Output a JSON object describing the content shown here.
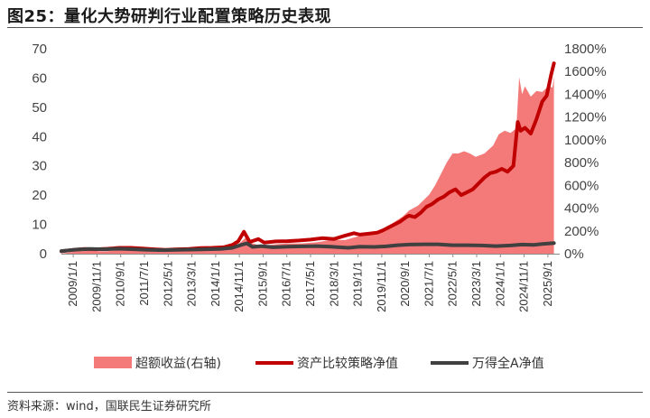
{
  "title": "图25：量化大势研判行业配置策略历史表现",
  "source": "资料来源：wind，国联民生证券研究所",
  "chart_data": {
    "type": "line",
    "left_axis": {
      "ticks": [
        0,
        10,
        20,
        30,
        40,
        50,
        60,
        70
      ],
      "ylim": [
        0,
        70
      ]
    },
    "right_axis": {
      "ticks": [
        "0%",
        "200%",
        "400%",
        "600%",
        "800%",
        "1000%",
        "1200%",
        "1400%",
        "1600%",
        "1800%"
      ],
      "ylim": [
        0,
        1800
      ]
    },
    "x_ticks": [
      "2009/1/1",
      "2009/11/1",
      "2010/9/1",
      "2011/7/1",
      "2012/5/1",
      "2013/3/1",
      "2014/1/1",
      "2014/11/1",
      "2015/9/1",
      "2016/7/1",
      "2017/5/1",
      "2018/3/1",
      "2019/1/1",
      "2019/11/1",
      "2020/9/1",
      "2021/7/1",
      "2022/5/1",
      "2023/3/1",
      "2024/1/1",
      "2024/11/1",
      "2025/9/1"
    ],
    "x_range": [
      2009.0,
      2026.2
    ],
    "series": [
      {
        "name": "超额收益(右轴)",
        "type": "area",
        "axis": "right",
        "color": "#f47a7a",
        "points": [
          [
            2009.0,
            0
          ],
          [
            2009.5,
            20
          ],
          [
            2010.0,
            25
          ],
          [
            2010.5,
            20
          ],
          [
            2011.0,
            30
          ],
          [
            2011.5,
            30
          ],
          [
            2012.0,
            20
          ],
          [
            2012.5,
            15
          ],
          [
            2013.0,
            25
          ],
          [
            2013.5,
            30
          ],
          [
            2014.0,
            30
          ],
          [
            2014.5,
            35
          ],
          [
            2014.9,
            40
          ],
          [
            2015.1,
            80
          ],
          [
            2015.4,
            150
          ],
          [
            2015.6,
            90
          ],
          [
            2015.9,
            70
          ],
          [
            2016.3,
            80
          ],
          [
            2016.8,
            90
          ],
          [
            2017.3,
            90
          ],
          [
            2017.8,
            100
          ],
          [
            2018.3,
            120
          ],
          [
            2018.8,
            120
          ],
          [
            2019.2,
            150
          ],
          [
            2019.6,
            160
          ],
          [
            2019.9,
            180
          ],
          [
            2020.2,
            230
          ],
          [
            2020.5,
            280
          ],
          [
            2020.8,
            330
          ],
          [
            2021.0,
            380
          ],
          [
            2021.3,
            420
          ],
          [
            2021.5,
            470
          ],
          [
            2021.7,
            520
          ],
          [
            2021.9,
            600
          ],
          [
            2022.1,
            700
          ],
          [
            2022.3,
            800
          ],
          [
            2022.5,
            880
          ],
          [
            2022.7,
            880
          ],
          [
            2022.9,
            900
          ],
          [
            2023.1,
            880
          ],
          [
            2023.3,
            850
          ],
          [
            2023.6,
            880
          ],
          [
            2023.9,
            950
          ],
          [
            2024.1,
            1050
          ],
          [
            2024.3,
            1080
          ],
          [
            2024.5,
            1060
          ],
          [
            2024.7,
            1100
          ],
          [
            2024.8,
            1550
          ],
          [
            2024.9,
            1400
          ],
          [
            2025.0,
            1470
          ],
          [
            2025.2,
            1380
          ],
          [
            2025.4,
            1430
          ],
          [
            2025.6,
            1420
          ],
          [
            2025.8,
            1470
          ],
          [
            2025.95,
            1460
          ],
          [
            2026.0,
            1560
          ]
        ]
      },
      {
        "name": "资产比较策略净值",
        "type": "line",
        "axis": "left",
        "color": "#c00000",
        "points": [
          [
            2009.0,
            0.8
          ],
          [
            2009.4,
            1.3
          ],
          [
            2009.8,
            1.6
          ],
          [
            2010.2,
            1.5
          ],
          [
            2010.6,
            1.7
          ],
          [
            2011.0,
            2.0
          ],
          [
            2011.4,
            2.0
          ],
          [
            2011.8,
            1.8
          ],
          [
            2012.2,
            1.5
          ],
          [
            2012.6,
            1.3
          ],
          [
            2013.0,
            1.5
          ],
          [
            2013.4,
            1.6
          ],
          [
            2013.8,
            1.9
          ],
          [
            2014.2,
            2.0
          ],
          [
            2014.6,
            2.2
          ],
          [
            2014.9,
            3.0
          ],
          [
            2015.1,
            4.2
          ],
          [
            2015.3,
            7.5
          ],
          [
            2015.5,
            4.0
          ],
          [
            2015.8,
            5.0
          ],
          [
            2016.0,
            3.8
          ],
          [
            2016.4,
            4.2
          ],
          [
            2016.8,
            4.3
          ],
          [
            2017.2,
            4.5
          ],
          [
            2017.6,
            4.8
          ],
          [
            2018.0,
            5.3
          ],
          [
            2018.4,
            5.0
          ],
          [
            2018.8,
            6.2
          ],
          [
            2019.1,
            7.0
          ],
          [
            2019.3,
            6.5
          ],
          [
            2019.6,
            6.8
          ],
          [
            2019.9,
            7.2
          ],
          [
            2020.1,
            8.0
          ],
          [
            2020.3,
            9.0
          ],
          [
            2020.5,
            10.0
          ],
          [
            2020.7,
            11.0
          ],
          [
            2020.9,
            12.5
          ],
          [
            2021.0,
            13.0
          ],
          [
            2021.2,
            12.5
          ],
          [
            2021.4,
            14.0
          ],
          [
            2021.6,
            16.0
          ],
          [
            2021.8,
            17.0
          ],
          [
            2022.0,
            18.5
          ],
          [
            2022.2,
            19.5
          ],
          [
            2022.4,
            21.0
          ],
          [
            2022.6,
            22.0
          ],
          [
            2022.8,
            20.0
          ],
          [
            2023.0,
            21.0
          ],
          [
            2023.2,
            22.0
          ],
          [
            2023.4,
            24.0
          ],
          [
            2023.6,
            26.0
          ],
          [
            2023.8,
            27.5
          ],
          [
            2024.0,
            28.0
          ],
          [
            2024.2,
            29.0
          ],
          [
            2024.4,
            28.0
          ],
          [
            2024.6,
            30.0
          ],
          [
            2024.75,
            45.0
          ],
          [
            2024.85,
            42.0
          ],
          [
            2025.0,
            43.0
          ],
          [
            2025.2,
            41.0
          ],
          [
            2025.4,
            46.0
          ],
          [
            2025.6,
            52.0
          ],
          [
            2025.75,
            54.0
          ],
          [
            2025.9,
            61.0
          ],
          [
            2026.0,
            65.0
          ]
        ]
      },
      {
        "name": "万得全A净值",
        "type": "line",
        "axis": "left",
        "color": "#404040",
        "points": [
          [
            2009.0,
            0.9
          ],
          [
            2009.5,
            1.4
          ],
          [
            2010.0,
            1.6
          ],
          [
            2010.5,
            1.5
          ],
          [
            2011.0,
            1.7
          ],
          [
            2011.5,
            1.5
          ],
          [
            2012.0,
            1.3
          ],
          [
            2012.5,
            1.2
          ],
          [
            2013.0,
            1.3
          ],
          [
            2013.5,
            1.4
          ],
          [
            2014.0,
            1.5
          ],
          [
            2014.5,
            1.6
          ],
          [
            2014.9,
            2.0
          ],
          [
            2015.2,
            3.0
          ],
          [
            2015.4,
            3.5
          ],
          [
            2015.6,
            2.3
          ],
          [
            2015.9,
            2.6
          ],
          [
            2016.3,
            2.2
          ],
          [
            2016.8,
            2.4
          ],
          [
            2017.3,
            2.5
          ],
          [
            2017.8,
            2.6
          ],
          [
            2018.3,
            2.4
          ],
          [
            2018.9,
            2.0
          ],
          [
            2019.3,
            2.4
          ],
          [
            2019.8,
            2.3
          ],
          [
            2020.2,
            2.5
          ],
          [
            2020.6,
            2.9
          ],
          [
            2021.0,
            3.1
          ],
          [
            2021.5,
            3.2
          ],
          [
            2022.0,
            3.2
          ],
          [
            2022.5,
            2.9
          ],
          [
            2023.0,
            2.9
          ],
          [
            2023.5,
            2.8
          ],
          [
            2024.0,
            2.6
          ],
          [
            2024.5,
            2.8
          ],
          [
            2024.9,
            3.1
          ],
          [
            2025.3,
            3.0
          ],
          [
            2025.6,
            3.3
          ],
          [
            2026.0,
            3.6
          ]
        ]
      }
    ],
    "legend": {
      "position": "bottom",
      "items": [
        "超额收益(右轴)",
        "资产比较策略净值",
        "万得全A净值"
      ]
    }
  }
}
